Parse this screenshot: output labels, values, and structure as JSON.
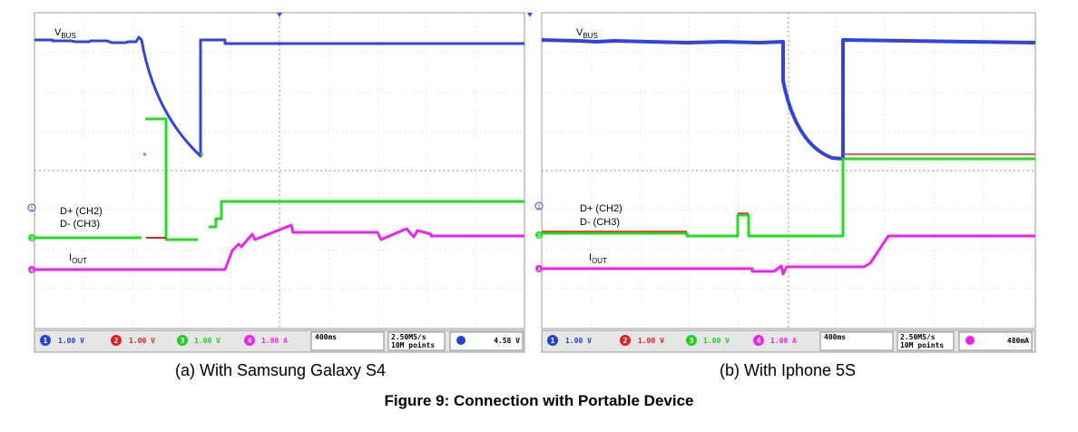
{
  "panels": [
    {
      "caption": "(a) With Samsung Galaxy S4",
      "labels": {
        "vbus": {
          "main": "V",
          "sub": "BUS"
        },
        "dplus": "D+ (CH2)",
        "dminus": "D- (CH3)",
        "iout": {
          "main": "I",
          "sub": "OUT"
        }
      },
      "markers": [
        "1",
        "3",
        "4"
      ],
      "status": {
        "channels": [
          {
            "num": "1",
            "scale": "1.00 V"
          },
          {
            "num": "2",
            "scale": "1.00 V"
          },
          {
            "num": "3",
            "scale": "1.00 V"
          },
          {
            "num": "4",
            "scale": "1.00 A"
          }
        ],
        "timebase": "400ms",
        "sample_rate": "2.50MS/s",
        "record": "10M points",
        "trigger": "4.58 V"
      }
    },
    {
      "caption": "(b) With Iphone 5S",
      "labels": {
        "vbus": {
          "main": "V",
          "sub": "BUS"
        },
        "dplus": "D+ (CH2)",
        "dminus": "D- (CH3)",
        "iout": {
          "main": "I",
          "sub": "OUT"
        }
      },
      "markers": [
        "1",
        "3",
        "4"
      ],
      "status": {
        "channels": [
          {
            "num": "1",
            "scale": "1.00 V"
          },
          {
            "num": "2",
            "scale": "1.00 V"
          },
          {
            "num": "3",
            "scale": "1.00 V"
          },
          {
            "num": "4",
            "scale": "1.00 A"
          }
        ],
        "timebase": "400ms",
        "sample_rate": "2.50MS/s",
        "record": "10M points",
        "trigger": "480mA"
      }
    }
  ],
  "figure_title": "Figure 9: Connection with Portable Device"
}
